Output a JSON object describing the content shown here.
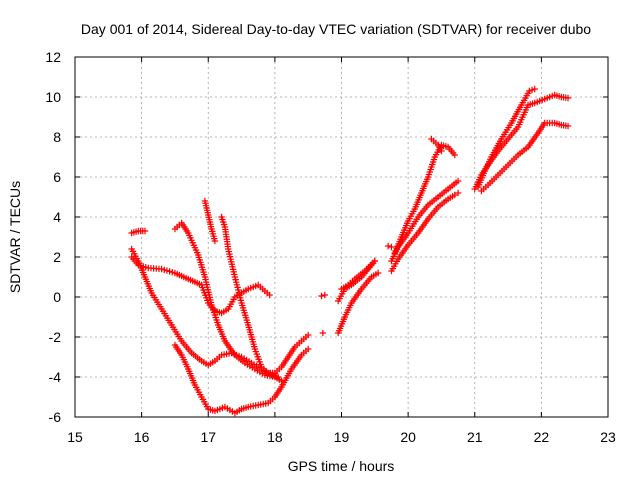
{
  "chart_data": {
    "type": "scatter",
    "title": "Day 001 of 2014, Sidereal Day-to-day VTEC variation (SDTVAR) for receiver dubo",
    "xlabel": "GPS time / hours",
    "ylabel": "SDTVAR / TECUs",
    "xlim": [
      15,
      23
    ],
    "ylim": [
      -6,
      12
    ],
    "xticks": [
      "15",
      "16",
      "17",
      "18",
      "19",
      "20",
      "21",
      "22",
      "23"
    ],
    "yticks": [
      "-6",
      "-4",
      "-2",
      "0",
      "2",
      "4",
      "6",
      "8",
      "10",
      "12"
    ],
    "grid": true,
    "marker": "+",
    "color": "#ff0000",
    "series": [
      {
        "x": [
          15.85,
          15.95,
          16.05
        ],
        "y": [
          3.2,
          3.3,
          3.3
        ]
      },
      {
        "x": [
          15.85,
          15.95,
          16.1,
          16.3,
          16.5,
          16.7,
          16.9,
          17.0,
          17.1,
          17.2,
          17.3,
          17.4,
          17.6,
          17.75,
          17.85,
          17.92
        ],
        "y": [
          2.0,
          1.6,
          1.45,
          1.4,
          1.2,
          0.9,
          0.6,
          -0.3,
          -0.7,
          -0.8,
          -0.6,
          0.0,
          0.4,
          0.6,
          0.3,
          0.1
        ]
      },
      {
        "x": [
          15.85,
          15.95,
          16.05,
          16.15,
          16.3,
          16.45,
          16.6,
          16.75,
          16.9,
          17.0,
          17.1,
          17.2,
          17.35,
          17.5,
          17.65,
          17.8,
          17.95,
          18.05
        ],
        "y": [
          2.4,
          1.8,
          1.0,
          0.2,
          -0.6,
          -1.4,
          -2.2,
          -2.8,
          -3.2,
          -3.4,
          -3.2,
          -2.9,
          -2.8,
          -3.0,
          -3.3,
          -3.6,
          -3.9,
          -4.0
        ]
      },
      {
        "x": [
          16.5,
          16.6,
          16.7,
          16.85,
          16.95,
          17.05,
          17.15,
          17.25,
          17.4,
          17.55,
          17.7,
          17.85,
          18.0,
          18.1
        ],
        "y": [
          3.4,
          3.7,
          3.2,
          2.1,
          1.0,
          -0.4,
          -1.4,
          -2.2,
          -2.9,
          -3.3,
          -3.6,
          -3.9,
          -4.0,
          -4.2
        ]
      },
      {
        "x": [
          16.5,
          16.6,
          16.7,
          16.8,
          16.9,
          17.0,
          17.1,
          17.25,
          17.4,
          17.5,
          17.6,
          17.75,
          17.9,
          18.0,
          18.1,
          18.25,
          18.4,
          18.5
        ],
        "y": [
          -2.4,
          -2.9,
          -3.6,
          -4.4,
          -5.0,
          -5.6,
          -5.7,
          -5.5,
          -5.8,
          -5.6,
          -5.5,
          -5.4,
          -5.3,
          -5.0,
          -4.5,
          -3.6,
          -2.9,
          -2.6
        ]
      },
      {
        "x": [
          16.95,
          17.0,
          17.05,
          17.1
        ],
        "y": [
          4.8,
          4.1,
          3.4,
          2.8
        ]
      },
      {
        "x": [
          17.2,
          17.25,
          17.3,
          17.4,
          17.5,
          17.6,
          17.7,
          17.8,
          17.9,
          18.0,
          18.1,
          18.2,
          18.3,
          18.4,
          18.5
        ],
        "y": [
          4.0,
          3.5,
          2.4,
          1.0,
          -0.3,
          -1.4,
          -2.6,
          -3.5,
          -3.8,
          -3.8,
          -3.5,
          -3.0,
          -2.5,
          -2.2,
          -1.9
        ]
      },
      {
        "x": [
          18.7,
          18.75
        ],
        "y": [
          0.05,
          0.1
        ]
      },
      {
        "x": [
          18.72
        ],
        "y": [
          -1.8
        ]
      },
      {
        "x": [
          18.95,
          19.05,
          19.15,
          19.3,
          19.45,
          19.55
        ],
        "y": [
          -1.8,
          -1.0,
          -0.3,
          0.4,
          1.0,
          1.2
        ]
      },
      {
        "x": [
          18.95,
          19.05,
          19.15,
          19.3,
          19.45,
          19.5
        ],
        "y": [
          -0.2,
          0.4,
          0.6,
          1.0,
          1.6,
          1.8
        ]
      },
      {
        "x": [
          19.0,
          19.1,
          19.2,
          19.35,
          19.5
        ],
        "y": [
          0.4,
          0.6,
          0.9,
          1.3,
          1.8
        ]
      },
      {
        "x": [
          19.7,
          19.75
        ],
        "y": [
          2.55,
          2.5
        ]
      },
      {
        "x": [
          19.75,
          19.85,
          20.0,
          20.15,
          20.3,
          20.45,
          20.6,
          20.7,
          20.75
        ],
        "y": [
          1.3,
          1.9,
          2.6,
          3.2,
          3.9,
          4.5,
          4.9,
          5.1,
          5.2
        ]
      },
      {
        "x": [
          19.75,
          19.85,
          20.0,
          20.15,
          20.3,
          20.45,
          20.6,
          20.75
        ],
        "y": [
          1.8,
          2.5,
          3.2,
          4.0,
          4.6,
          5.0,
          5.4,
          5.8
        ]
      },
      {
        "x": [
          19.8,
          19.9,
          20.0,
          20.1,
          20.2,
          20.3,
          20.4,
          20.5,
          20.6,
          20.7
        ],
        "y": [
          2.2,
          3.0,
          3.8,
          4.4,
          5.2,
          6.0,
          7.0,
          7.6,
          7.5,
          7.1
        ]
      },
      {
        "x": [
          20.35,
          20.45,
          20.5
        ],
        "y": [
          7.9,
          7.6,
          7.3
        ]
      },
      {
        "x": [
          21.0,
          21.1,
          21.2,
          21.35,
          21.5,
          21.65,
          21.8,
          21.9,
          22.05,
          22.2,
          22.3,
          22.4
        ],
        "y": [
          5.4,
          6.1,
          6.6,
          7.3,
          7.9,
          8.5,
          9.6,
          9.7,
          9.9,
          10.1,
          10.0,
          9.95
        ]
      },
      {
        "x": [
          21.05,
          21.15,
          21.25,
          21.4,
          21.55,
          21.7,
          21.82,
          21.9
        ],
        "y": [
          5.5,
          6.3,
          7.0,
          7.9,
          8.7,
          9.6,
          10.3,
          10.4
        ]
      },
      {
        "x": [
          21.1,
          21.2,
          21.35,
          21.5,
          21.65,
          21.8,
          21.95,
          22.05,
          22.2,
          22.3,
          22.4
        ],
        "y": [
          5.3,
          5.6,
          6.1,
          6.6,
          7.1,
          7.5,
          8.2,
          8.7,
          8.7,
          8.6,
          8.55
        ]
      }
    ]
  }
}
